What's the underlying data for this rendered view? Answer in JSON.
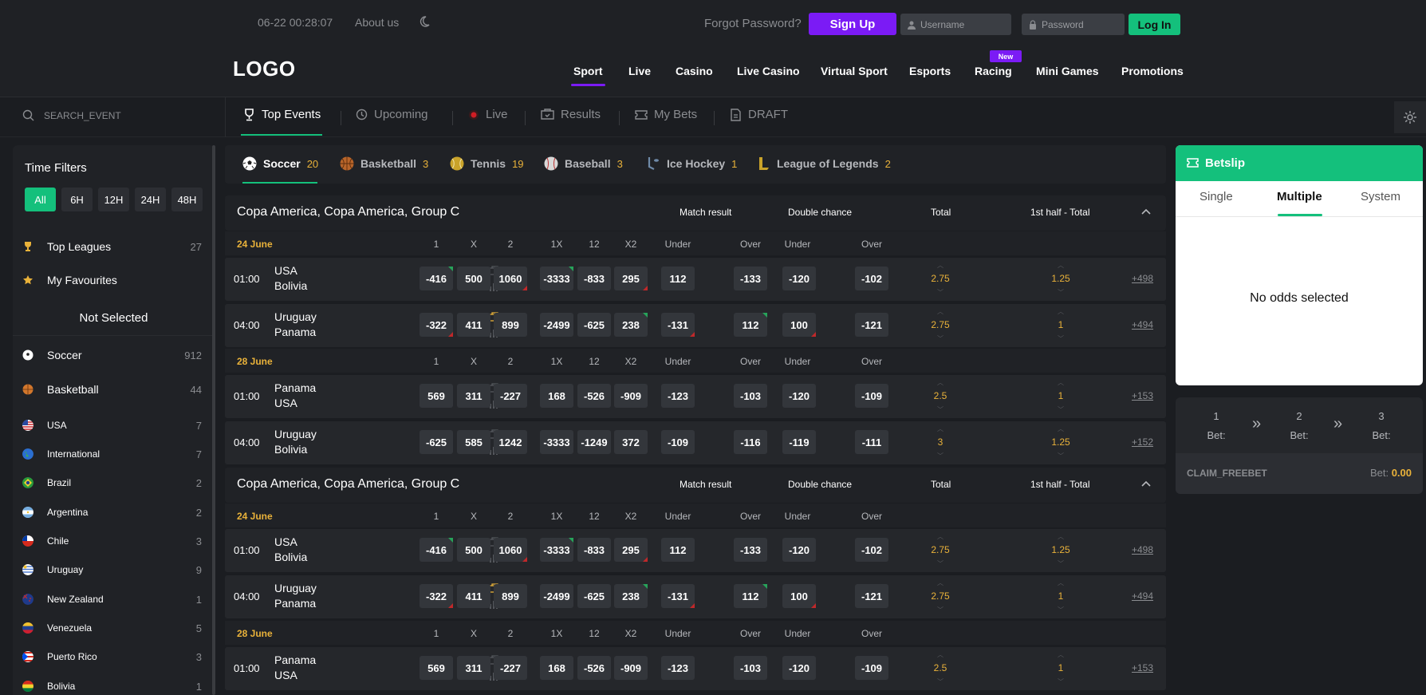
{
  "header": {
    "datetime": "06-22  00:28:07",
    "about": "About us",
    "forgot": "Forgot Password?",
    "signup": "Sign Up",
    "username_placeholder": "Username",
    "password_placeholder": "Password",
    "login": "Log In",
    "logo": "LOGO",
    "new_badge": "New",
    "nav": [
      "Sport",
      "Live",
      "Casino",
      "Live Casino",
      "Virtual Sport",
      "Esports",
      "Racing",
      "Mini Games",
      "Promotions"
    ]
  },
  "subnav": {
    "search_placeholder": "SEARCH_EVENT",
    "tabs": [
      "Top Events",
      "Upcoming",
      "Live",
      "Results",
      "My Bets",
      "DRAFT"
    ]
  },
  "sidebar": {
    "time_filters_title": "Time Filters",
    "time_filters": [
      "All",
      "6H",
      "12H",
      "24H",
      "48H"
    ],
    "top_leagues": {
      "label": "Top Leagues",
      "count": "27"
    },
    "favourites": {
      "label": "My Favourites"
    },
    "not_selected": "Not Selected",
    "sports": [
      {
        "label": "Soccer",
        "count": "912"
      },
      {
        "label": "Basketball",
        "count": "44"
      }
    ],
    "countries": [
      {
        "label": "USA",
        "count": "7"
      },
      {
        "label": "International",
        "count": "7"
      },
      {
        "label": "Brazil",
        "count": "2"
      },
      {
        "label": "Argentina",
        "count": "2"
      },
      {
        "label": "Chile",
        "count": "3"
      },
      {
        "label": "Uruguay",
        "count": "9"
      },
      {
        "label": "New Zealand",
        "count": "1"
      },
      {
        "label": "Venezuela",
        "count": "5"
      },
      {
        "label": "Puerto Rico",
        "count": "3"
      },
      {
        "label": "Bolivia",
        "count": "1"
      }
    ]
  },
  "sport_tabs": [
    {
      "label": "Soccer",
      "count": "20"
    },
    {
      "label": "Basketball",
      "count": "3"
    },
    {
      "label": "Tennis",
      "count": "19"
    },
    {
      "label": "Baseball",
      "count": "3"
    },
    {
      "label": "Ice Hockey",
      "count": "1"
    },
    {
      "label": "League of Legends",
      "count": "2"
    }
  ],
  "league": {
    "title": "Copa America, Copa America, Group C",
    "markets": [
      "Match result",
      "Double chance",
      "Total",
      "1st half - Total"
    ],
    "cols": [
      "1",
      "X",
      "2",
      "1X",
      "12",
      "X2",
      "Under",
      "Over",
      "Under",
      "Over"
    ]
  },
  "dates": [
    "24 June",
    "28 June"
  ],
  "matches": [
    {
      "time": "01:00",
      "home": "USA",
      "away": "Bolivia",
      "odds": [
        "-416",
        "500",
        "1060",
        "-3333",
        "-833",
        "295",
        "112",
        "-133",
        "-120",
        "-102"
      ],
      "total": "2.75",
      "half": "1.25",
      "more": "+498"
    },
    {
      "time": "04:00",
      "home": "Uruguay",
      "away": "Panama",
      "odds": [
        "-322",
        "411",
        "899",
        "-2499",
        "-625",
        "238",
        "-131",
        "112",
        "100",
        "-121"
      ],
      "total": "2.75",
      "half": "1",
      "more": "+494"
    },
    {
      "time": "01:00",
      "home": "Panama",
      "away": "USA",
      "odds": [
        "569",
        "311",
        "-227",
        "168",
        "-526",
        "-909",
        "-123",
        "-103",
        "-120",
        "-109"
      ],
      "total": "2.5",
      "half": "1",
      "more": "+153"
    },
    {
      "time": "04:00",
      "home": "Uruguay",
      "away": "Bolivia",
      "odds": [
        "-625",
        "585",
        "1242",
        "-3333",
        "-1249",
        "372",
        "-109",
        "-116",
        "-119",
        "-111"
      ],
      "total": "3",
      "half": "1.25",
      "more": "+152"
    }
  ],
  "betslip": {
    "title": "Betslip",
    "tabs": [
      "Single",
      "Multiple",
      "System"
    ],
    "empty": "No odds selected",
    "steps": [
      {
        "num": "1",
        "label": "Bet:"
      },
      {
        "num": "2",
        "label": "Bet:"
      },
      {
        "num": "3",
        "label": "Bet:"
      }
    ],
    "claim": "CLAIM_FREEBET",
    "bet_label": "Bet:",
    "bet_amount": "0.00"
  },
  "colors": {
    "accent": "#14c07c",
    "brand": "#7b1bf5",
    "gold": "#e9b23a"
  }
}
